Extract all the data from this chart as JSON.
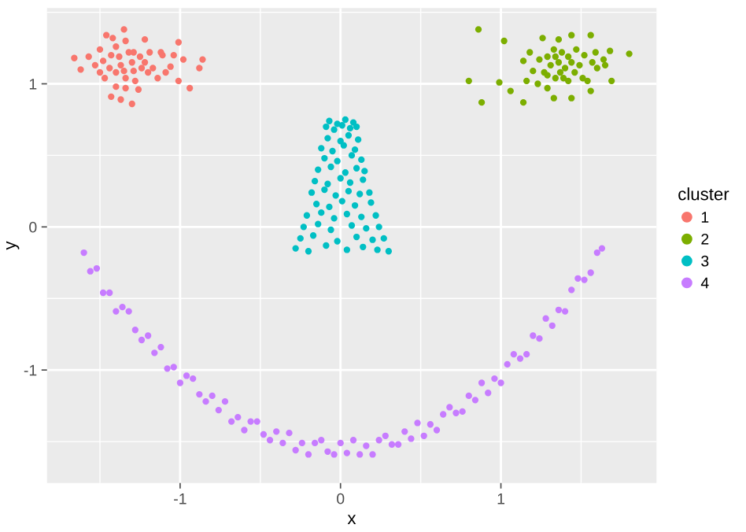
{
  "chart_data": {
    "type": "scatter",
    "xlabel": "x",
    "ylabel": "y",
    "legend_title": "cluster",
    "legend": "right",
    "grid": true,
    "marker": "circle",
    "xlim": [
      -1.83,
      1.97
    ],
    "ylim": [
      -1.79,
      1.53
    ],
    "xticks": [
      -1,
      0,
      1
    ],
    "yticks": [
      -1,
      0,
      1
    ],
    "series": [
      {
        "name": "1",
        "color": "#f8766d",
        "x": [
          -1.66,
          -1.62,
          -1.57,
          -1.53,
          -1.5,
          -1.48,
          -1.46,
          -1.44,
          -1.43,
          -1.42,
          -1.4,
          -1.38,
          -1.37,
          -1.35,
          -1.34,
          -1.34,
          -1.32,
          -1.3,
          -1.3,
          -1.29,
          -1.28,
          -1.26,
          -1.25,
          -1.24,
          -1.22,
          -1.2,
          -1.19,
          -1.17,
          -1.14,
          -1.12,
          -1.11,
          -1.09,
          -1.06,
          -1.04,
          -1.01,
          -1.01,
          -0.98,
          -0.94,
          -0.88,
          -0.86,
          -1.43,
          -1.37,
          -1.5,
          -1.47,
          -1.4,
          -1.34,
          -1.29,
          -1.22,
          -1.4,
          -1.35
        ],
        "values": [
          1.18,
          1.1,
          1.19,
          1.13,
          1.24,
          1.16,
          1.34,
          1.11,
          1.2,
          1.32,
          1.08,
          1.19,
          1.13,
          1.38,
          1.3,
          1.04,
          1.22,
          1.15,
          0.86,
          1.09,
          1.02,
          0.96,
          1.19,
          1.11,
          1.31,
          1.08,
          1.22,
          1.11,
          1.04,
          1.22,
          1.2,
          1.08,
          1.12,
          1.2,
          1.29,
          1.02,
          1.17,
          0.97,
          1.11,
          1.17,
          0.91,
          0.89,
          1.08,
          1.04,
          0.98,
          0.97,
          1.22,
          1.15,
          1.26,
          1.09
        ]
      },
      {
        "name": "2",
        "color": "#7cae00",
        "x": [
          0.86,
          1.02,
          0.8,
          0.88,
          0.99,
          1.06,
          1.14,
          1.14,
          1.16,
          1.18,
          1.2,
          1.23,
          1.24,
          1.26,
          1.27,
          1.29,
          1.29,
          1.31,
          1.33,
          1.33,
          1.34,
          1.36,
          1.36,
          1.37,
          1.38,
          1.4,
          1.42,
          1.42,
          1.44,
          1.44,
          1.46,
          1.47,
          1.49,
          1.51,
          1.52,
          1.54,
          1.56,
          1.56,
          1.57,
          1.59,
          1.6,
          1.64,
          1.65,
          1.68,
          1.69,
          1.8,
          1.29,
          1.39,
          1.34,
          1.44
        ],
        "values": [
          1.38,
          1.3,
          1.02,
          0.87,
          1.01,
          0.95,
          1.16,
          0.87,
          1.02,
          1.22,
          1.09,
          1.0,
          1.17,
          1.32,
          1.08,
          1.19,
          0.97,
          1.13,
          1.24,
          0.9,
          1.04,
          1.15,
          1.31,
          1.08,
          1.22,
          1.11,
          1.02,
          1.19,
          1.34,
          0.9,
          1.08,
          1.24,
          1.13,
          1.04,
          1.2,
          1.02,
          1.34,
          0.95,
          1.15,
          1.22,
          1.11,
          1.17,
          1.13,
          1.23,
          1.02,
          1.21,
          1.06,
          1.04,
          1.19,
          1.15
        ]
      },
      {
        "name": "3",
        "color": "#00bfc4",
        "x": [
          -0.07,
          -0.02,
          0.03,
          0.08,
          -0.09,
          -0.04,
          0.01,
          0.06,
          0.1,
          -0.08,
          0.0,
          0.05,
          0.11,
          -0.12,
          -0.05,
          0.02,
          0.09,
          -0.1,
          -0.02,
          0.07,
          0.13,
          -0.14,
          -0.06,
          0.03,
          0.1,
          0.15,
          -0.16,
          -0.08,
          0.0,
          0.06,
          0.14,
          -0.18,
          -0.1,
          -0.03,
          0.05,
          0.12,
          0.18,
          -0.15,
          -0.07,
          0.01,
          0.09,
          0.19,
          -0.21,
          -0.12,
          -0.04,
          0.04,
          0.13,
          0.22,
          -0.23,
          -0.14,
          -0.06,
          0.07,
          0.16,
          0.24,
          -0.25,
          -0.17,
          -0.02,
          0.1,
          0.2,
          0.27,
          -0.28,
          -0.2,
          -0.09,
          0.04,
          0.14,
          0.23,
          0.3
        ],
        "values": [
          0.74,
          0.72,
          0.75,
          0.73,
          0.7,
          0.68,
          0.71,
          0.69,
          0.7,
          0.62,
          0.6,
          0.64,
          0.61,
          0.55,
          0.53,
          0.57,
          0.54,
          0.48,
          0.46,
          0.5,
          0.47,
          0.4,
          0.42,
          0.38,
          0.41,
          0.39,
          0.32,
          0.3,
          0.34,
          0.31,
          0.33,
          0.24,
          0.26,
          0.22,
          0.25,
          0.23,
          0.24,
          0.16,
          0.14,
          0.18,
          0.15,
          0.17,
          0.08,
          0.1,
          0.06,
          0.09,
          0.07,
          0.08,
          0.0,
          0.02,
          -0.02,
          0.01,
          -0.01,
          0.0,
          -0.08,
          -0.06,
          -0.1,
          -0.07,
          -0.09,
          -0.08,
          -0.15,
          -0.17,
          -0.13,
          -0.16,
          -0.14,
          -0.16,
          -0.17
        ]
      },
      {
        "name": "4",
        "color": "#c77cff",
        "x": [
          -1.6,
          -1.56,
          -1.52,
          -1.48,
          -1.44,
          -1.4,
          -1.36,
          -1.32,
          -1.28,
          -1.24,
          -1.2,
          -1.16,
          -1.12,
          -1.08,
          -1.04,
          -1.0,
          -0.96,
          -0.92,
          -0.88,
          -0.84,
          -0.8,
          -0.76,
          -0.72,
          -0.68,
          -0.64,
          -0.6,
          -0.56,
          -0.52,
          -0.48,
          -0.44,
          -0.4,
          -0.36,
          -0.32,
          -0.28,
          -0.24,
          -0.2,
          -0.16,
          -0.12,
          -0.08,
          -0.04,
          0.0,
          0.04,
          0.08,
          0.12,
          0.16,
          0.2,
          0.24,
          0.28,
          0.32,
          0.36,
          0.4,
          0.44,
          0.48,
          0.52,
          0.56,
          0.6,
          0.64,
          0.68,
          0.72,
          0.76,
          0.8,
          0.84,
          0.88,
          0.92,
          0.96,
          1.0,
          1.04,
          1.08,
          1.12,
          1.16,
          1.2,
          1.24,
          1.28,
          1.32,
          1.36,
          1.4,
          1.44,
          1.48,
          1.52,
          1.56,
          1.6,
          1.63
        ],
        "values": [
          -0.18,
          -0.31,
          -0.29,
          -0.46,
          -0.46,
          -0.59,
          -0.56,
          -0.59,
          -0.72,
          -0.79,
          -0.76,
          -0.88,
          -0.84,
          -0.99,
          -0.98,
          -1.09,
          -1.04,
          -1.06,
          -1.17,
          -1.22,
          -1.18,
          -1.28,
          -1.22,
          -1.36,
          -1.33,
          -1.42,
          -1.36,
          -1.36,
          -1.45,
          -1.49,
          -1.43,
          -1.51,
          -1.44,
          -1.56,
          -1.51,
          -1.59,
          -1.51,
          -1.49,
          -1.57,
          -1.59,
          -1.51,
          -1.58,
          -1.49,
          -1.59,
          -1.53,
          -1.59,
          -1.49,
          -1.46,
          -1.52,
          -1.52,
          -1.43,
          -1.48,
          -1.37,
          -1.46,
          -1.38,
          -1.42,
          -1.31,
          -1.26,
          -1.3,
          -1.29,
          -1.18,
          -1.21,
          -1.09,
          -1.16,
          -1.06,
          -1.09,
          -0.96,
          -0.89,
          -0.92,
          -0.89,
          -0.76,
          -0.78,
          -0.64,
          -0.69,
          -0.58,
          -0.59,
          -0.44,
          -0.36,
          -0.37,
          -0.32,
          -0.18,
          -0.15
        ]
      }
    ]
  }
}
